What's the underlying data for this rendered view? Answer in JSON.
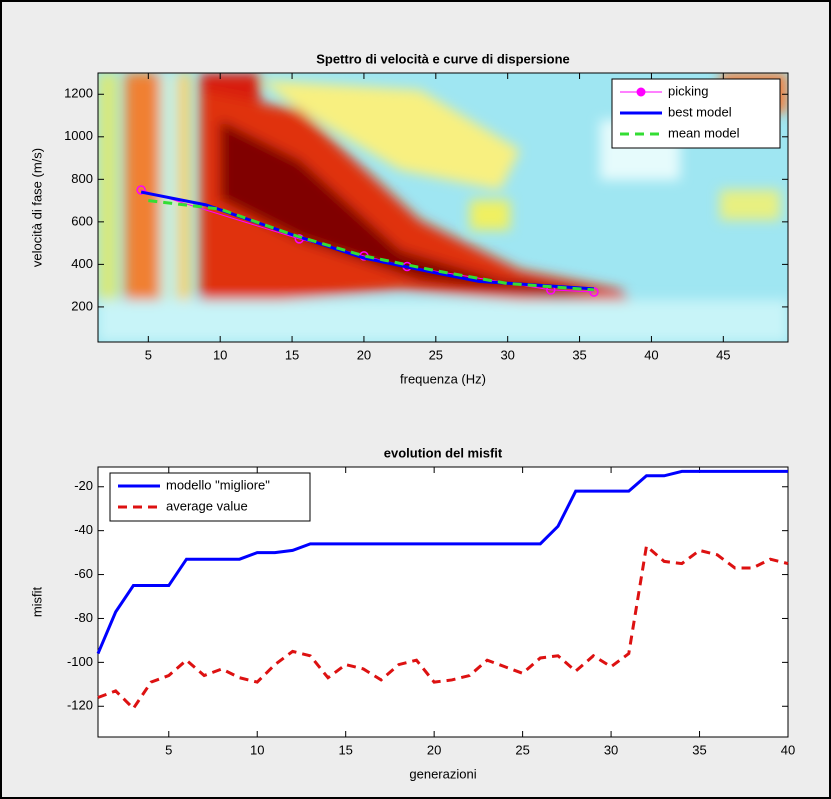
{
  "chart_data": [
    {
      "type": "line",
      "title": "Spettro di velocità e curve di dispersione",
      "x_label": "frequenza (Hz)",
      "y_label": "velocità di fase (m/s)",
      "xlim": [
        1.5,
        49.5
      ],
      "ylim": [
        35,
        1300
      ],
      "xticks": [
        5,
        10,
        15,
        20,
        25,
        30,
        35,
        40,
        45
      ],
      "yticks": [
        200,
        400,
        600,
        800,
        1000,
        1200
      ],
      "legend": "top-right",
      "series": [
        {
          "name": "picking",
          "color": "#ff00ff",
          "marker": "o",
          "linestyle": "solid",
          "x": [
            4.5,
            15.5,
            20,
            23,
            33,
            36
          ],
          "values": [
            750,
            520,
            440,
            390,
            280,
            270
          ]
        },
        {
          "name": "best model",
          "color": "#0000ff",
          "linestyle": "solid",
          "x": [
            4.5,
            9,
            15,
            20,
            25,
            28,
            36
          ],
          "values": [
            740,
            680,
            540,
            430,
            360,
            320,
            285
          ]
        },
        {
          "name": "mean model",
          "color": "#33dd33",
          "linestyle": "dashed",
          "x": [
            5,
            10,
            15,
            20,
            25,
            30,
            36
          ],
          "values": [
            700,
            660,
            540,
            440,
            370,
            310,
            280
          ]
        }
      ]
    },
    {
      "type": "line",
      "title": "evolution del misfit",
      "x_label": "generazioni",
      "y_label": "misfit",
      "xlim": [
        1,
        40
      ],
      "ylim": [
        -134,
        -11
      ],
      "xticks": [
        5,
        10,
        15,
        20,
        25,
        30,
        35,
        40
      ],
      "yticks": [
        -120,
        -100,
        -80,
        -60,
        -40,
        -20
      ],
      "legend": "top-left",
      "x": [
        1,
        2,
        3,
        4,
        5,
        6,
        7,
        8,
        9,
        10,
        11,
        12,
        13,
        14,
        15,
        16,
        17,
        18,
        19,
        20,
        21,
        22,
        23,
        24,
        25,
        26,
        27,
        28,
        29,
        30,
        31,
        32,
        33,
        34,
        35,
        36,
        37,
        38,
        39,
        40
      ],
      "series": [
        {
          "name": "modello \"migliore\"",
          "color": "#0000ff",
          "linestyle": "solid",
          "values": [
            -96,
            -77,
            -65,
            -65,
            -65,
            -53,
            -53,
            -53,
            -53,
            -50,
            -50,
            -49,
            -46,
            -46,
            -46,
            -46,
            -46,
            -46,
            -46,
            -46,
            -46,
            -46,
            -46,
            -46,
            -46,
            -46,
            -38,
            -22,
            -22,
            -22,
            -22,
            -15,
            -15,
            -13,
            -13,
            -13,
            -13,
            -13,
            -13,
            -13
          ]
        },
        {
          "name": "average value",
          "color": "#dd1111",
          "linestyle": "dashed",
          "values": [
            -116,
            -113,
            -121,
            -109,
            -106,
            -99,
            -106,
            -103,
            -107,
            -109,
            -101,
            -95,
            -97,
            -107,
            -101,
            -103,
            -108,
            -101,
            -99,
            -109,
            -108,
            -106,
            -99,
            -102,
            -105,
            -98,
            -97,
            -104,
            -97,
            -102,
            -96,
            -47,
            -54,
            -55,
            -49,
            -51,
            -57,
            -57,
            -53,
            -55
          ]
        }
      ]
    }
  ]
}
